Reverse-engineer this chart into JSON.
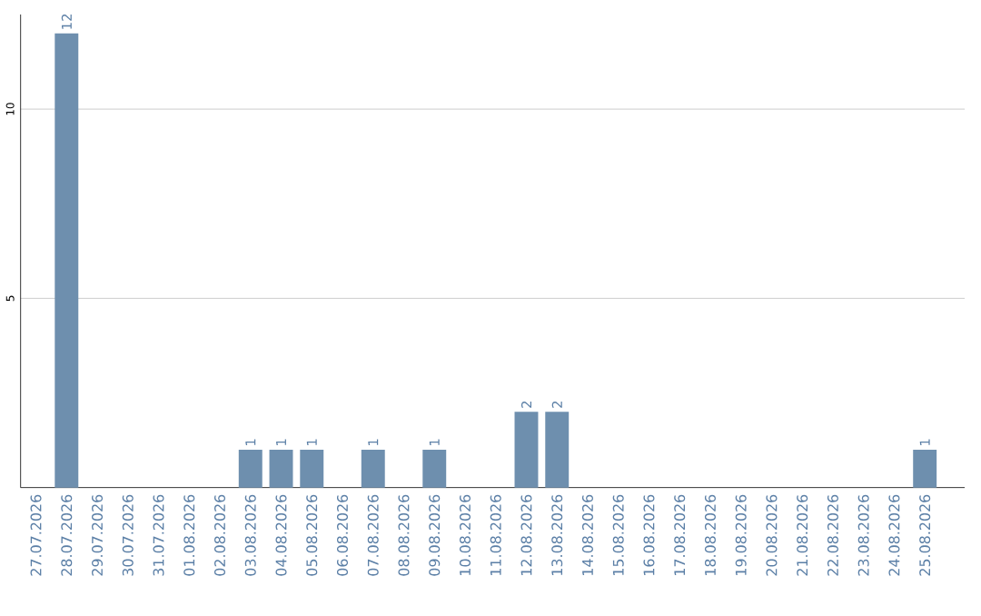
{
  "chart_data": {
    "type": "bar",
    "categories": [
      "27.07.2026",
      "28.07.2026",
      "29.07.2026",
      "30.07.2026",
      "31.07.2026",
      "01.08.2026",
      "02.08.2026",
      "03.08.2026",
      "04.08.2026",
      "05.08.2026",
      "06.08.2026",
      "07.08.2026",
      "08.08.2026",
      "09.08.2026",
      "10.08.2026",
      "11.08.2026",
      "12.08.2026",
      "13.08.2026",
      "14.08.2026",
      "15.08.2026",
      "16.08.2026",
      "17.08.2026",
      "18.08.2026",
      "19.08.2026",
      "20.08.2026",
      "21.08.2026",
      "22.08.2026",
      "23.08.2026",
      "24.08.2026",
      "25.08.2026"
    ],
    "values": [
      0,
      12,
      0,
      0,
      0,
      0,
      0,
      1,
      1,
      1,
      0,
      1,
      0,
      1,
      0,
      0,
      2,
      2,
      0,
      0,
      0,
      0,
      0,
      0,
      0,
      0,
      0,
      0,
      0,
      1
    ],
    "value_labels": [
      null,
      "12",
      null,
      null,
      null,
      null,
      null,
      "1",
      "1",
      "1",
      null,
      "1",
      null,
      "1",
      null,
      null,
      "2",
      "2",
      null,
      null,
      null,
      null,
      null,
      null,
      null,
      null,
      null,
      null,
      null,
      "1"
    ],
    "color": "#6e8fae",
    "ylim": [
      0,
      12.5
    ],
    "yticks": [
      5,
      10
    ],
    "grid": "y"
  }
}
